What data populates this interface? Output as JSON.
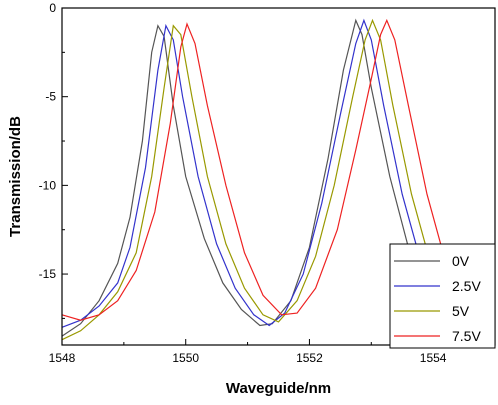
{
  "chart_data": {
    "type": "line",
    "title": "",
    "xlabel": "Waveguide/nm",
    "ylabel": "Transmission/dB",
    "xlim": [
      1548,
      1555
    ],
    "ylim": [
      -19,
      0
    ],
    "xticks": [
      1548,
      1550,
      1552,
      1554
    ],
    "yticks": [
      0,
      -5,
      -10,
      -15
    ],
    "grid": false,
    "legend_position": "bottom-right",
    "series": [
      {
        "name": "0V",
        "color": "#555555",
        "points": [
          [
            1548.0,
            -18.5
          ],
          [
            1548.3,
            -17.8
          ],
          [
            1548.6,
            -16.5
          ],
          [
            1548.9,
            -14.4
          ],
          [
            1549.1,
            -11.8
          ],
          [
            1549.3,
            -7.5
          ],
          [
            1549.45,
            -2.5
          ],
          [
            1549.55,
            -1.0
          ],
          [
            1549.65,
            -1.6
          ],
          [
            1549.8,
            -5.5
          ],
          [
            1550.0,
            -9.5
          ],
          [
            1550.3,
            -13.0
          ],
          [
            1550.6,
            -15.5
          ],
          [
            1550.9,
            -17.0
          ],
          [
            1551.2,
            -17.9
          ],
          [
            1551.4,
            -17.8
          ],
          [
            1551.7,
            -16.5
          ],
          [
            1552.0,
            -13.5
          ],
          [
            1552.3,
            -8.5
          ],
          [
            1552.55,
            -3.5
          ],
          [
            1552.75,
            -0.7
          ],
          [
            1552.85,
            -1.5
          ],
          [
            1553.0,
            -4.5
          ],
          [
            1553.3,
            -9.5
          ],
          [
            1553.6,
            -13.5
          ],
          [
            1553.9,
            -16.2
          ],
          [
            1554.2,
            -17.6
          ],
          [
            1554.5,
            -18.0
          ],
          [
            1554.8,
            -17.0
          ],
          [
            1555.0,
            -16.2
          ]
        ]
      },
      {
        "name": "2.5V",
        "color": "#3333cc",
        "points": [
          [
            1548.0,
            -18.0
          ],
          [
            1548.3,
            -17.6
          ],
          [
            1548.6,
            -16.8
          ],
          [
            1548.9,
            -15.5
          ],
          [
            1549.1,
            -13.5
          ],
          [
            1549.35,
            -9.0
          ],
          [
            1549.55,
            -3.5
          ],
          [
            1549.68,
            -1.0
          ],
          [
            1549.8,
            -1.8
          ],
          [
            1549.95,
            -5.0
          ],
          [
            1550.2,
            -9.5
          ],
          [
            1550.5,
            -13.3
          ],
          [
            1550.8,
            -15.8
          ],
          [
            1551.1,
            -17.3
          ],
          [
            1551.35,
            -17.9
          ],
          [
            1551.6,
            -17.2
          ],
          [
            1551.9,
            -15.0
          ],
          [
            1552.2,
            -11.0
          ],
          [
            1552.5,
            -6.0
          ],
          [
            1552.75,
            -2.0
          ],
          [
            1552.88,
            -0.7
          ],
          [
            1553.0,
            -1.8
          ],
          [
            1553.2,
            -5.5
          ],
          [
            1553.5,
            -10.5
          ],
          [
            1553.8,
            -14.3
          ],
          [
            1554.1,
            -16.8
          ],
          [
            1554.4,
            -18.0
          ],
          [
            1554.7,
            -17.8
          ],
          [
            1555.0,
            -16.0
          ]
        ]
      },
      {
        "name": "5V",
        "color": "#999900",
        "points": [
          [
            1548.0,
            -18.7
          ],
          [
            1548.3,
            -18.2
          ],
          [
            1548.6,
            -17.3
          ],
          [
            1548.9,
            -16.0
          ],
          [
            1549.2,
            -13.8
          ],
          [
            1549.45,
            -9.5
          ],
          [
            1549.65,
            -4.5
          ],
          [
            1549.8,
            -1.0
          ],
          [
            1549.92,
            -1.5
          ],
          [
            1550.1,
            -5.0
          ],
          [
            1550.35,
            -9.5
          ],
          [
            1550.65,
            -13.3
          ],
          [
            1550.95,
            -15.8
          ],
          [
            1551.25,
            -17.3
          ],
          [
            1551.5,
            -17.7
          ],
          [
            1551.8,
            -16.5
          ],
          [
            1552.1,
            -14.0
          ],
          [
            1552.4,
            -10.0
          ],
          [
            1552.7,
            -5.0
          ],
          [
            1552.9,
            -1.8
          ],
          [
            1553.02,
            -0.7
          ],
          [
            1553.15,
            -1.8
          ],
          [
            1553.35,
            -5.5
          ],
          [
            1553.65,
            -10.5
          ],
          [
            1553.95,
            -14.3
          ],
          [
            1554.25,
            -16.6
          ],
          [
            1554.55,
            -17.6
          ],
          [
            1554.8,
            -17.6
          ],
          [
            1555.0,
            -17.0
          ]
        ]
      },
      {
        "name": "7.5V",
        "color": "#ee2222",
        "points": [
          [
            1548.0,
            -17.3
          ],
          [
            1548.3,
            -17.6
          ],
          [
            1548.6,
            -17.3
          ],
          [
            1548.9,
            -16.5
          ],
          [
            1549.2,
            -14.8
          ],
          [
            1549.5,
            -11.5
          ],
          [
            1549.75,
            -6.5
          ],
          [
            1549.92,
            -2.2
          ],
          [
            1550.02,
            -0.9
          ],
          [
            1550.15,
            -2.0
          ],
          [
            1550.35,
            -5.5
          ],
          [
            1550.65,
            -10.0
          ],
          [
            1550.95,
            -13.8
          ],
          [
            1551.25,
            -16.2
          ],
          [
            1551.55,
            -17.3
          ],
          [
            1551.8,
            -17.2
          ],
          [
            1552.1,
            -15.8
          ],
          [
            1552.45,
            -12.5
          ],
          [
            1552.75,
            -8.0
          ],
          [
            1553.0,
            -4.0
          ],
          [
            1553.15,
            -1.5
          ],
          [
            1553.25,
            -0.7
          ],
          [
            1553.38,
            -1.8
          ],
          [
            1553.6,
            -5.5
          ],
          [
            1553.9,
            -10.5
          ],
          [
            1554.2,
            -14.3
          ],
          [
            1554.5,
            -16.6
          ],
          [
            1554.8,
            -17.8
          ],
          [
            1555.0,
            -17.8
          ]
        ]
      }
    ]
  }
}
